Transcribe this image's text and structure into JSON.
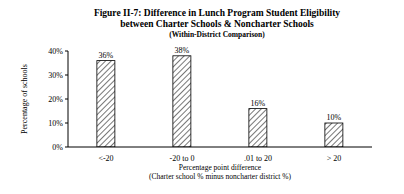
{
  "chart_data": {
    "type": "bar",
    "title": "Figure II-7: Difference in Lunch Program Student Eligibility between Charter Schools & Noncharter Schools",
    "subtitle": "(Within-District Comparison)",
    "categories": [
      "<-20",
      "-20 to 0",
      ".01 to 20",
      "> 20"
    ],
    "values": [
      36,
      38,
      16,
      10
    ],
    "value_labels": [
      "36%",
      "38%",
      "16%",
      "10%"
    ],
    "data_labels": true,
    "color": "#555555",
    "ylim": [
      0,
      40
    ],
    "yticks": [
      {
        "value": 0,
        "label": "0%"
      },
      {
        "value": 10,
        "label": "10%"
      },
      {
        "value": 20,
        "label": "20%"
      },
      {
        "value": 30,
        "label": "30%"
      },
      {
        "value": 40,
        "label": "40%"
      }
    ],
    "ylabel": "Percentage of schools",
    "xlabel": [
      "Percentage point difference",
      "(Charter school % minus noncharter district %)"
    ],
    "grid": false
  }
}
